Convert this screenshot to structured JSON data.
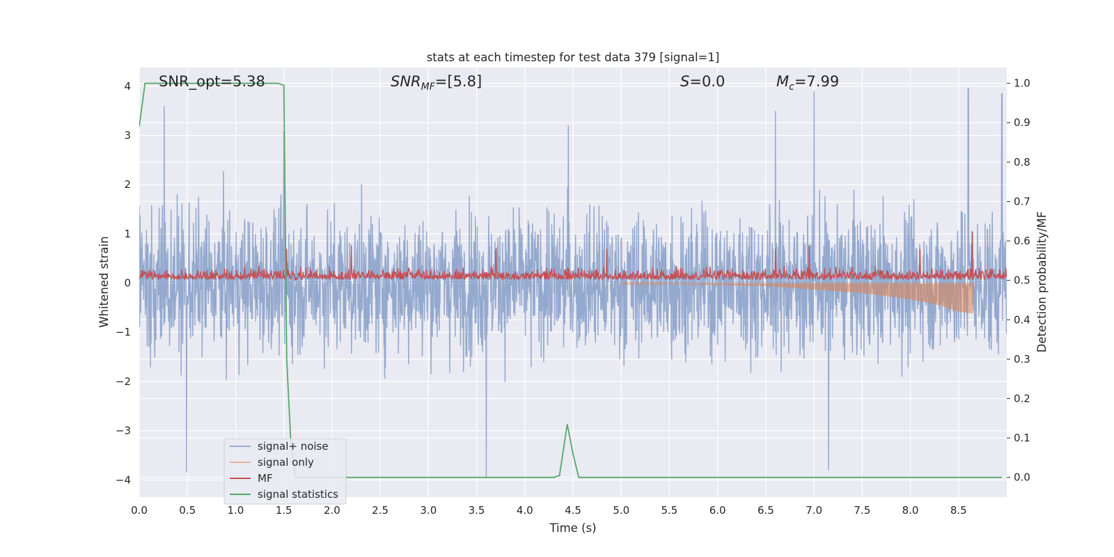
{
  "chart_data": {
    "type": "line",
    "title": "stats at each timestep for test data 379 [signal=1]",
    "xlabel": "Time (s)",
    "ylabel_left": "Whitened strain",
    "ylabel_right": "Detection probability/MF",
    "xlim": [
      0.0,
      9.0
    ],
    "ylim_left": [
      -4.35,
      4.38
    ],
    "ylim_right": [
      -0.05,
      1.04
    ],
    "x_ticks": [
      "0.0",
      "0.5",
      "1.0",
      "1.5",
      "2.0",
      "2.5",
      "3.0",
      "3.5",
      "4.0",
      "4.5",
      "5.0",
      "5.5",
      "6.0",
      "6.5",
      "7.0",
      "7.5",
      "8.0",
      "8.5"
    ],
    "y_ticks_left": [
      "−4",
      "−3",
      "−2",
      "−1",
      "0",
      "1",
      "2",
      "3",
      "4"
    ],
    "y_ticks_right": [
      "0.0",
      "0.1",
      "0.2",
      "0.3",
      "0.4",
      "0.5",
      "0.6",
      "0.7",
      "0.8",
      "0.9",
      "1.0"
    ],
    "grid": true,
    "legend_position": "lower-left",
    "annotations": {
      "snr_opt": "SNR_opt=5.38",
      "snr_mf_main": "SNR",
      "snr_mf_sub": "MF",
      "snr_mf_value": "=[5.8]",
      "s_italic": "S",
      "s_value": "=0.0",
      "mc_main": "M",
      "mc_sub": "c",
      "mc_value": "=7.99"
    },
    "series": [
      {
        "name": "signal+ noise",
        "axis": "left",
        "color": "#4c72b0",
        "alpha": 0.5,
        "description_amplitude": "noise envelope roughly ±2.5, peaks to ±3.9",
        "peaks": [
          [
            0.26,
            3.6
          ],
          [
            0.49,
            -3.85
          ],
          [
            1.5,
            3.1
          ],
          [
            3.6,
            -3.95
          ],
          [
            4.45,
            3.2
          ],
          [
            6.6,
            3.5
          ],
          [
            7.0,
            3.9
          ],
          [
            7.15,
            -3.8
          ],
          [
            8.6,
            3.95
          ],
          [
            8.95,
            3.85
          ]
        ]
      },
      {
        "name": "signal only",
        "axis": "left",
        "color": "#dd8452",
        "alpha": 0.5,
        "points": [
          [
            0.0,
            0.0
          ],
          [
            5.5,
            -0.02
          ],
          [
            6.5,
            -0.06
          ],
          [
            7.5,
            -0.2
          ],
          [
            8.0,
            -0.33
          ],
          [
            8.3,
            -0.45
          ],
          [
            8.5,
            -0.58
          ],
          [
            8.65,
            -0.62
          ],
          [
            8.66,
            0.0
          ]
        ]
      },
      {
        "name": "MF",
        "axis": "right",
        "color": "#c44e52",
        "baseline": 0.5,
        "mean": 0.52,
        "peaks": [
          [
            1.53,
            0.58
          ],
          [
            2.2,
            0.59
          ],
          [
            3.7,
            0.58
          ],
          [
            4.85,
            0.58
          ],
          [
            6.6,
            0.58
          ],
          [
            6.95,
            0.59
          ],
          [
            8.1,
            0.58
          ],
          [
            8.64,
            0.625
          ]
        ]
      },
      {
        "name": "signal statistics",
        "axis": "right",
        "color": "#55a868",
        "points": [
          [
            0.0,
            0.89
          ],
          [
            0.06,
            1.0
          ],
          [
            1.44,
            1.0
          ],
          [
            1.5,
            0.995
          ],
          [
            1.53,
            0.3
          ],
          [
            1.57,
            0.1
          ],
          [
            1.62,
            0.0
          ],
          [
            4.3,
            0.0
          ],
          [
            4.36,
            0.005
          ],
          [
            4.44,
            0.135
          ],
          [
            4.5,
            0.06
          ],
          [
            4.56,
            0.0
          ],
          [
            8.95,
            0.0
          ]
        ]
      }
    ]
  }
}
